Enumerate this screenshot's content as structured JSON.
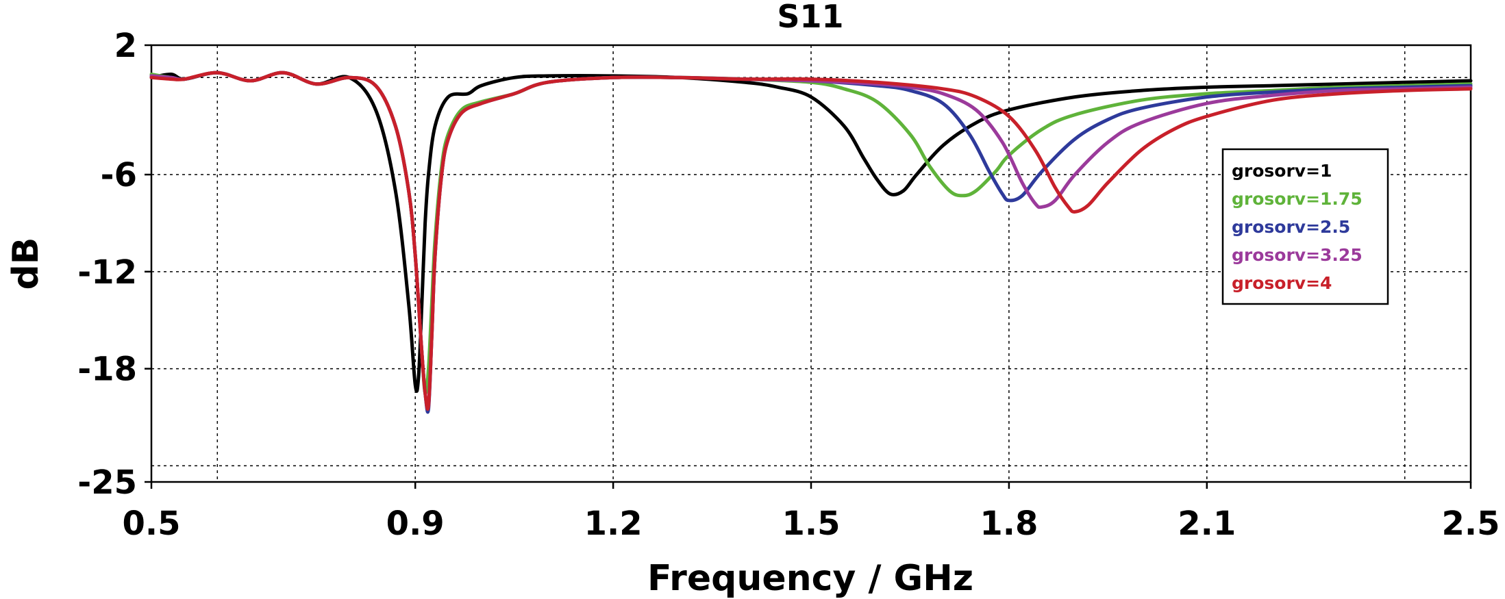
{
  "chart_data": {
    "type": "line",
    "title": "S11",
    "xlabel": "Frequency / GHz",
    "ylabel": "dB",
    "xlim": [
      0.5,
      2.5
    ],
    "ylim": [
      -25,
      2
    ],
    "x_ticks": [
      0.5,
      0.9,
      1.2,
      1.5,
      1.8,
      2.1,
      2.5
    ],
    "x_tick_labels": [
      "0.5",
      "0.9",
      "1.2",
      "1.5",
      "1.8",
      "2.1",
      "2.5"
    ],
    "y_ticks": [
      2,
      -6,
      -12,
      -18,
      -25
    ],
    "y_tick_labels": [
      "2",
      "-6",
      "-12",
      "-18",
      "-25"
    ],
    "x_grid": [
      0.6,
      0.9,
      1.2,
      1.5,
      1.8,
      2.1,
      2.4
    ],
    "y_grid": [
      0,
      -6,
      -12,
      -18,
      -24
    ],
    "grid": true,
    "legend_position": "right",
    "series": [
      {
        "name": "grosorv=1",
        "color": "#000000",
        "x": [
          0.5,
          0.53,
          0.55,
          0.6,
          0.65,
          0.7,
          0.75,
          0.8,
          0.84,
          0.87,
          0.89,
          0.9,
          0.905,
          0.91,
          0.915,
          0.92,
          0.93,
          0.95,
          0.98,
          1.0,
          1.05,
          1.1,
          1.2,
          1.3,
          1.4,
          1.45,
          1.5,
          1.55,
          1.58,
          1.6,
          1.62,
          1.64,
          1.66,
          1.7,
          1.75,
          1.8,
          1.9,
          2.0,
          2.1,
          2.2,
          2.3,
          2.4,
          2.5
        ],
        "y": [
          0.0,
          0.2,
          -0.1,
          0.3,
          -0.2,
          0.3,
          -0.4,
          0.0,
          -2.0,
          -7.0,
          -14.0,
          -19.0,
          -18.5,
          -14.0,
          -9.0,
          -6.0,
          -3.0,
          -1.2,
          -1.0,
          -0.5,
          0.0,
          0.1,
          0.1,
          0.0,
          -0.3,
          -0.6,
          -1.2,
          -3.0,
          -5.0,
          -6.3,
          -7.2,
          -7.0,
          -6.0,
          -4.2,
          -2.8,
          -2.0,
          -1.2,
          -0.8,
          -0.6,
          -0.5,
          -0.4,
          -0.3,
          -0.2
        ]
      },
      {
        "name": "grosorv=1.75",
        "color": "#5fb33a",
        "x": [
          0.5,
          0.53,
          0.55,
          0.6,
          0.65,
          0.7,
          0.75,
          0.8,
          0.84,
          0.87,
          0.89,
          0.9,
          0.91,
          0.915,
          0.92,
          0.925,
          0.93,
          0.94,
          0.95,
          0.97,
          1.0,
          1.05,
          1.1,
          1.2,
          1.3,
          1.4,
          1.5,
          1.55,
          1.6,
          1.65,
          1.68,
          1.71,
          1.73,
          1.75,
          1.78,
          1.8,
          1.85,
          1.9,
          2.0,
          2.1,
          2.2,
          2.3,
          2.4,
          2.5
        ],
        "y": [
          0.2,
          0.0,
          -0.1,
          0.3,
          -0.2,
          0.3,
          -0.4,
          0.0,
          -0.5,
          -3.0,
          -7.0,
          -11.0,
          -17.0,
          -19.5,
          -18.0,
          -14.0,
          -10.0,
          -5.5,
          -3.5,
          -2.0,
          -1.5,
          -1.0,
          -0.3,
          0.0,
          0.0,
          -0.1,
          -0.3,
          -0.7,
          -1.5,
          -3.5,
          -5.5,
          -7.0,
          -7.3,
          -7.0,
          -5.8,
          -4.8,
          -3.2,
          -2.3,
          -1.4,
          -1.0,
          -0.8,
          -0.6,
          -0.5,
          -0.4
        ]
      },
      {
        "name": "grosorv=2.5",
        "color": "#2e3a9b",
        "x": [
          0.5,
          0.53,
          0.55,
          0.6,
          0.65,
          0.7,
          0.75,
          0.8,
          0.84,
          0.87,
          0.89,
          0.9,
          0.91,
          0.915,
          0.92,
          0.925,
          0.93,
          0.94,
          0.95,
          0.97,
          1.0,
          1.05,
          1.1,
          1.2,
          1.3,
          1.4,
          1.5,
          1.6,
          1.65,
          1.7,
          1.74,
          1.77,
          1.79,
          1.8,
          1.82,
          1.85,
          1.9,
          1.95,
          2.0,
          2.1,
          2.2,
          2.3,
          2.4,
          2.5
        ],
        "y": [
          0.1,
          0.0,
          -0.1,
          0.3,
          -0.2,
          0.3,
          -0.4,
          0.0,
          -0.5,
          -3.0,
          -7.0,
          -11.0,
          -17.0,
          -19.5,
          -20.5,
          -16.0,
          -11.0,
          -6.0,
          -3.8,
          -2.2,
          -1.6,
          -1.0,
          -0.3,
          0.0,
          0.0,
          -0.1,
          -0.2,
          -0.5,
          -0.8,
          -1.6,
          -3.5,
          -5.8,
          -7.2,
          -7.6,
          -7.3,
          -5.8,
          -3.8,
          -2.6,
          -1.9,
          -1.2,
          -0.9,
          -0.7,
          -0.6,
          -0.5
        ]
      },
      {
        "name": "grosorv=3.25",
        "color": "#9b3a9b",
        "x": [
          0.5,
          0.53,
          0.55,
          0.6,
          0.65,
          0.7,
          0.75,
          0.8,
          0.84,
          0.87,
          0.89,
          0.9,
          0.91,
          0.915,
          0.92,
          0.925,
          0.93,
          0.94,
          0.95,
          0.97,
          1.0,
          1.05,
          1.1,
          1.2,
          1.3,
          1.4,
          1.5,
          1.6,
          1.65,
          1.7,
          1.75,
          1.79,
          1.82,
          1.84,
          1.85,
          1.87,
          1.9,
          1.95,
          2.0,
          2.1,
          2.2,
          2.3,
          2.4,
          2.5
        ],
        "y": [
          0.1,
          0.0,
          -0.1,
          0.3,
          -0.2,
          0.3,
          -0.4,
          0.0,
          -0.5,
          -3.0,
          -7.0,
          -11.0,
          -17.0,
          -19.5,
          -20.3,
          -16.0,
          -11.0,
          -6.0,
          -3.8,
          -2.2,
          -1.6,
          -1.0,
          -0.3,
          0.0,
          0.0,
          -0.1,
          -0.2,
          -0.4,
          -0.6,
          -1.0,
          -2.0,
          -4.0,
          -6.5,
          -7.8,
          -8.0,
          -7.6,
          -6.0,
          -4.0,
          -2.8,
          -1.6,
          -1.1,
          -0.8,
          -0.7,
          -0.6
        ]
      },
      {
        "name": "grosorv=4",
        "color": "#c8202a",
        "x": [
          0.5,
          0.53,
          0.55,
          0.6,
          0.65,
          0.7,
          0.75,
          0.8,
          0.84,
          0.87,
          0.89,
          0.9,
          0.91,
          0.915,
          0.92,
          0.925,
          0.93,
          0.94,
          0.95,
          0.97,
          1.0,
          1.05,
          1.1,
          1.2,
          1.3,
          1.4,
          1.5,
          1.6,
          1.7,
          1.75,
          1.8,
          1.84,
          1.87,
          1.89,
          1.9,
          1.92,
          1.95,
          2.0,
          2.05,
          2.1,
          2.2,
          2.3,
          2.4,
          2.5
        ],
        "y": [
          0.0,
          -0.1,
          -0.1,
          0.3,
          -0.2,
          0.3,
          -0.4,
          0.0,
          -0.5,
          -3.0,
          -7.0,
          -11.0,
          -17.0,
          -19.5,
          -20.3,
          -16.0,
          -11.0,
          -6.0,
          -3.8,
          -2.2,
          -1.6,
          -1.0,
          -0.3,
          0.0,
          0.0,
          -0.1,
          -0.1,
          -0.3,
          -0.7,
          -1.2,
          -2.4,
          -4.5,
          -6.8,
          -8.0,
          -8.3,
          -7.9,
          -6.5,
          -4.5,
          -3.2,
          -2.4,
          -1.4,
          -1.0,
          -0.8,
          -0.7
        ]
      }
    ]
  }
}
